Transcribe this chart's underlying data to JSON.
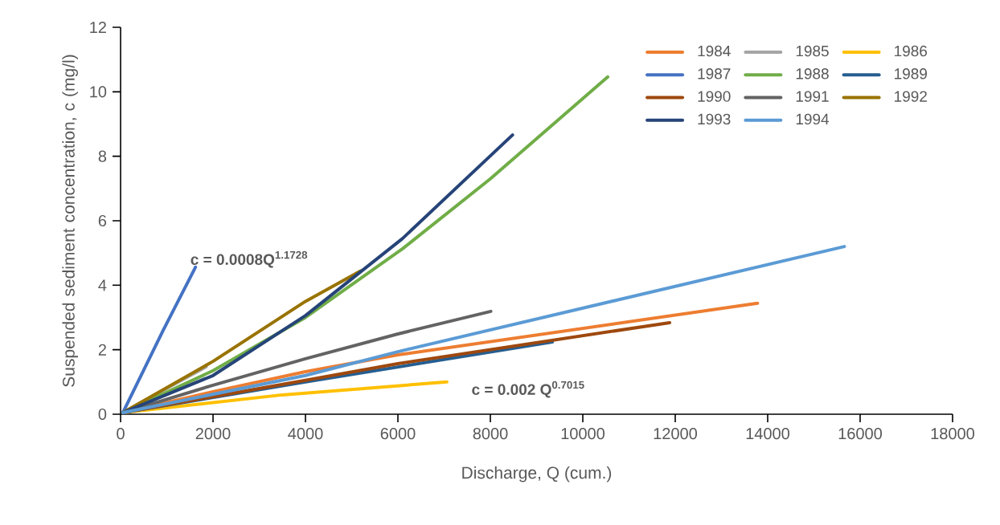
{
  "chart_data": {
    "type": "line",
    "xlabel": "Discharge, Q (cum.)",
    "ylabel": "Suspended sediment concentration, c (mg/l)",
    "xlim": [
      0,
      18000
    ],
    "xticks": [
      0,
      2000,
      4000,
      6000,
      8000,
      10000,
      12000,
      14000,
      16000,
      18000
    ],
    "ylim": [
      0,
      12
    ],
    "yticks": [
      0,
      2,
      4,
      6,
      8,
      10,
      12
    ],
    "grid": false,
    "legend": "top right",
    "marker": "none",
    "line_style": "solid",
    "series": [
      {
        "name": "1984",
        "color": "#ed7d31",
        "x": [
          50,
          2000,
          4000,
          6000,
          13780
        ],
        "values": [
          0.05,
          0.7,
          1.32,
          1.84,
          3.44
        ]
      },
      {
        "name": "1985",
        "color": "#a5a5a5",
        "x": [
          50,
          1000,
          1850
        ],
        "values": [
          0.05,
          0.8,
          1.47
        ]
      },
      {
        "name": "1986",
        "color": "#ffc000",
        "x": [
          50,
          3500,
          7060
        ],
        "values": [
          0.05,
          0.6,
          1.0
        ]
      },
      {
        "name": "1987",
        "color": "#4472c4",
        "x": [
          50,
          920,
          1620
        ],
        "values": [
          0.05,
          2.6,
          4.56
        ]
      },
      {
        "name": "1988",
        "color": "#70ad47",
        "x": [
          50,
          2000,
          4000,
          6100,
          8000,
          10540
        ],
        "values": [
          0.05,
          1.35,
          3.0,
          5.13,
          7.3,
          10.46
        ]
      },
      {
        "name": "1989",
        "color": "#255e91",
        "x": [
          50,
          4000,
          9340
        ],
        "values": [
          0.05,
          1.0,
          2.24
        ]
      },
      {
        "name": "1990",
        "color": "#9e480e",
        "x": [
          50,
          4000,
          6000,
          11880
        ],
        "values": [
          0.05,
          1.05,
          1.57,
          2.84
        ]
      },
      {
        "name": "1991",
        "color": "#636363",
        "x": [
          50,
          2000,
          4000,
          6000,
          8010
        ],
        "values": [
          0.05,
          0.9,
          1.72,
          2.49,
          3.19
        ]
      },
      {
        "name": "1992",
        "color": "#997300",
        "x": [
          50,
          2000,
          4000,
          5200
        ],
        "values": [
          0.05,
          1.64,
          3.5,
          4.45
        ]
      },
      {
        "name": "1993",
        "color": "#264478",
        "x": [
          50,
          2000,
          4000,
          6100,
          8480
        ],
        "values": [
          0.05,
          1.2,
          3.06,
          5.45,
          8.66
        ]
      },
      {
        "name": "1994",
        "color": "#5b9bd5",
        "x": [
          50,
          4000,
          6000,
          15660
        ],
        "values": [
          0.05,
          1.2,
          1.94,
          5.2
        ]
      }
    ],
    "annotations": [
      "c = 0.0008Q$^{1.1728}$",
      "c = 0.002 Q$^{0.7015}$"
    ]
  }
}
